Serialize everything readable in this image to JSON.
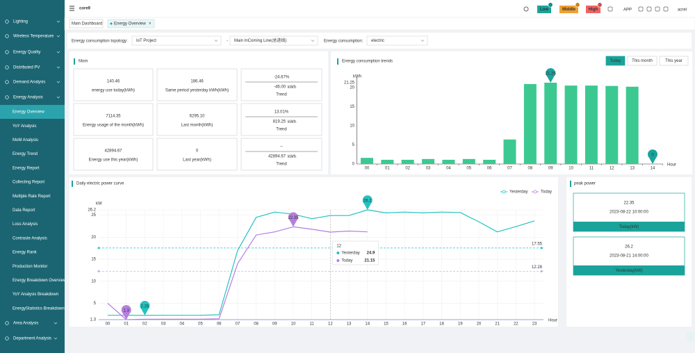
{
  "header": {
    "title": "core9",
    "alerts": [
      {
        "label": "Low",
        "count": 0,
        "color": "#1aa39a"
      },
      {
        "label": "Middle",
        "count": 0,
        "color": "#f0a030"
      },
      {
        "label": "High",
        "count": 0,
        "color": "#f06464"
      }
    ],
    "app": "APP",
    "user": "acrel"
  },
  "sidebar": {
    "items": [
      "Lighting",
      "Wireless Temperature",
      "Energy Quality",
      "Distributed PV",
      "Demand Analysis",
      "Energy Analysis"
    ],
    "sub_items": [
      "Energy Overview",
      "YoY Analysis",
      "MoM Analysis",
      "Energy Trend",
      "Energy Report",
      "Collecting Report",
      "Multiple Rate Report",
      "Data Report",
      "Loss Analysis",
      "Contraste Analysis",
      "Energy Rank",
      "Production Monitor",
      "Energy Breakdown Overview",
      "YoY Analysis Breakdown",
      "EnergyStatistics Breakdown"
    ],
    "items_after": [
      "Area Analysis",
      "Department Analysis"
    ]
  },
  "tabs": [
    "Main Dashboard",
    "Energy Overview"
  ],
  "filters": {
    "topology_label": "Energy consumption topology:",
    "topology": "IoT Project",
    "separator": "-",
    "line": "Main InComing Line(总进线)",
    "type_label": "Energy consumption:",
    "type": "electric"
  },
  "mom": {
    "title": "Mom",
    "rows": [
      {
        "current": {
          "value": "140.46",
          "label": "energy use today(kWh)"
        },
        "previous": {
          "value": "186.46",
          "label": "Same period yesterday kWh(kWh)"
        },
        "trend": {
          "percent": "-24.67%",
          "diff": "-46.00",
          "unit": "kWh",
          "label": "Trend"
        }
      },
      {
        "current": {
          "value": "7114.35",
          "label": "Energy usage of the month(kWh)"
        },
        "previous": {
          "value": "6295.10",
          "label": "Last month(kWh)"
        },
        "trend": {
          "percent": "13.01%",
          "diff": "819.25",
          "unit": "kWh",
          "label": "Trend"
        }
      },
      {
        "current": {
          "value": "42894.67",
          "label": "Energy use this year(kWh)"
        },
        "previous": {
          "value": "0",
          "label": "Last year(kWh)"
        },
        "trend": {
          "percent": "--",
          "diff": "42894.67",
          "unit": "kWh",
          "label": "Trend"
        }
      }
    ]
  },
  "peak_power": {
    "title": "peak power",
    "cards": [
      {
        "value": "22.35",
        "time": "2023-08-22 10:00:00",
        "label": "Today(kW)"
      },
      {
        "value": "26.2",
        "time": "2023-08-21 14:00:00",
        "label": "Yesterday(kW)"
      }
    ]
  },
  "chart_data": [
    {
      "type": "bar",
      "title": "Energy consumption trends",
      "buttons": [
        "Today",
        "This month",
        "This year"
      ],
      "y_label": "kWh",
      "x_label": "Hour",
      "categories": [
        "00",
        "01",
        "02",
        "03",
        "04",
        "05",
        "06",
        "07",
        "08",
        "09",
        "10",
        "11",
        "12",
        "13",
        "14"
      ],
      "values": [
        1.6,
        1.1,
        1.1,
        1.3,
        1.1,
        1.3,
        1.1,
        6.4,
        20.9,
        21.25,
        20.5,
        20.5,
        20.4,
        20.2,
        0
      ],
      "color": "#3cc991",
      "marker_color": "#1aa39a",
      "ylim": [
        0,
        21.25
      ],
      "yticks": [
        0,
        5,
        10,
        15,
        20,
        21.25
      ],
      "grid": false
    },
    {
      "type": "line",
      "title": "Daily electric power curve",
      "y_label": "kW",
      "x_label": "Hour",
      "categories": [
        "00",
        "01",
        "02",
        "03",
        "04",
        "05",
        "06",
        "07",
        "08",
        "09",
        "10",
        "11",
        "12",
        "13",
        "14",
        "15",
        "16",
        "17",
        "18",
        "19",
        "20",
        "21",
        "22",
        "23"
      ],
      "series": [
        {
          "name": "Yesterday",
          "color": "#22c3c0",
          "values": [
            2.3,
            2.3,
            2.26,
            2.3,
            2.3,
            2.3,
            2.4,
            17,
            24.5,
            25.7,
            25.2,
            24.2,
            24.9,
            24.9,
            26.2,
            25.5,
            25.7,
            25.5,
            25.7,
            25.6,
            23.5,
            21.2,
            22.4,
            23.7
          ]
        },
        {
          "name": "Today",
          "color": "#b57ee0",
          "values": [
            5,
            1.3,
            1.4,
            1.4,
            1.4,
            1.4,
            1.5,
            14,
            20.5,
            21.2,
            22.35,
            21.8,
            21.15,
            21.4,
            21.2,
            null,
            null,
            null,
            null,
            null,
            null,
            null,
            null,
            null
          ]
        }
      ],
      "mark_lines": [
        {
          "value": 17.55,
          "color": "#22c3c0"
        },
        {
          "value": 12.28,
          "color": "#c9a0ec"
        }
      ],
      "ylim": [
        1.3,
        26.2
      ],
      "yticks": [
        1.3,
        5,
        10,
        15,
        20,
        25,
        26.2
      ],
      "grid": true,
      "tooltip_index": 12
    }
  ]
}
